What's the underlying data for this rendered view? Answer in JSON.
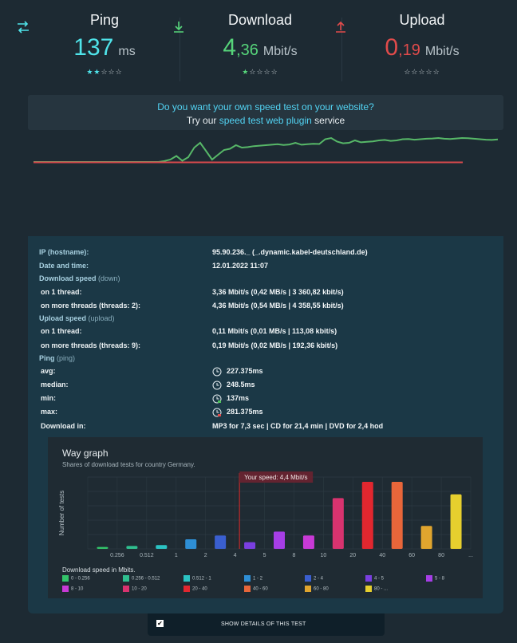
{
  "metrics": {
    "ping": {
      "title": "Ping",
      "value": "137",
      "unit": "ms",
      "stars_filled": 2,
      "stars_total": 5,
      "color": "#4fe3e9",
      "icon": "swap-arrows-icon"
    },
    "download": {
      "title": "Download",
      "value_int": "4",
      "value_dec": ",36",
      "unit": "Mbit/s",
      "stars_filled": 1,
      "stars_total": 5,
      "color": "#56d47a",
      "icon": "download-icon"
    },
    "upload": {
      "title": "Upload",
      "value_int": "0",
      "value_dec": ",19",
      "unit": "Mbit/s",
      "stars_filled": 0,
      "stars_total": 5,
      "color": "#e14b4b",
      "icon": "upload-icon"
    }
  },
  "promo": {
    "question": "Do you want your own speed test on your website?",
    "line2_prefix": "Try our ",
    "link": "speed test web plugin",
    "line2_suffix": " service"
  },
  "details": {
    "ip_label": "IP (hostname):",
    "ip_value": "95.90.236._ (_.dynamic.kabel-deutschland.de)",
    "date_label": "Date and time:",
    "date_value": "12.01.2022 11:07",
    "download_label": "Download speed",
    "download_sub": "(down)",
    "dl_one_label": "on 1 thread:",
    "dl_one_value": "3,36 Mbit/s (0,42 MB/s | 3 360,82 kbit/s)",
    "dl_more_label": "on more threads (threads: 2):",
    "dl_more_value": "4,36 Mbit/s (0,54 MB/s | 4 358,55 kbit/s)",
    "upload_label": "Upload speed",
    "upload_sub": "(upload)",
    "ul_one_label": "on 1 thread:",
    "ul_one_value": "0,11 Mbit/s (0,01 MB/s | 113,08 kbit/s)",
    "ul_more_label": "on more threads (threads: 9):",
    "ul_more_value": "0,19 Mbit/s (0,02 MB/s | 192,36 kbit/s)",
    "ping_label": "Ping",
    "ping_sub": "(ping)",
    "avg_label": "avg:",
    "avg_value": "227.375ms",
    "median_label": "median:",
    "median_value": "248.5ms",
    "min_label": "min:",
    "min_value": "137ms",
    "max_label": "max:",
    "max_value": "281.375ms",
    "dlin_label": "Download in:",
    "dlin_value": "MP3 for 7,3 sec | CD for 21,4 min | DVD for 2,4 hod"
  },
  "way_graph": {
    "title": "Way graph",
    "subtitle": "Shares of download tests for country Germany.",
    "marker_label": "Your speed: 4,4 Mbit/s",
    "legend_title": "Download speed in Mbits."
  },
  "chart_data": {
    "type": "bar",
    "title": "Way graph",
    "subtitle": "Shares of download tests for country Germany.",
    "ylabel": "Number of tests",
    "xlabel": "Download speed in Mbits.",
    "categories": [
      "0 - 0.256",
      "0.256 - 0.512",
      "0.512 - 1",
      "1 - 2",
      "2 - 4",
      "4 - 5",
      "5 - 8",
      "8 - 10",
      "10 - 20",
      "20 - 40",
      "40 - 60",
      "60 - 80",
      "80 - ..."
    ],
    "values": [
      2,
      3,
      4,
      10,
      14,
      7,
      18,
      14,
      53,
      70,
      70,
      24,
      57
    ],
    "colors": [
      "#33c46a",
      "#2fbf8f",
      "#2bc3c3",
      "#2e8fd6",
      "#3a5fd0",
      "#7a3fe0",
      "#a63ee6",
      "#c83ad6",
      "#d8336f",
      "#e1272f",
      "#e8663a",
      "#e0a52e",
      "#e6cf2e"
    ],
    "xticks": [
      "0.256",
      "0.512",
      "1",
      "2",
      "4",
      "5",
      "8",
      "10",
      "20",
      "40",
      "60",
      "80",
      "..."
    ],
    "ylim": [
      0,
      75
    ],
    "your_speed_label": "Your speed: 4,4 Mbit/s",
    "grid": true
  },
  "speed_history": {
    "download": [
      0,
      0,
      0,
      0,
      0,
      0,
      0,
      0,
      0,
      0,
      0,
      0,
      0,
      0,
      0,
      0,
      0,
      0,
      0,
      0,
      0,
      0,
      0.04,
      0.1,
      0.25,
      0.05,
      0.2,
      0.6,
      0.8,
      0.45,
      0.1,
      0.3,
      0.5,
      0.55,
      0.7,
      0.6,
      0.62,
      0.66,
      0.68,
      0.7,
      0.72,
      0.74,
      0.71,
      0.73,
      0.8,
      0.72,
      0.74,
      0.76,
      0.75,
      0.95,
      1.0,
      0.85,
      0.78,
      0.8,
      0.9,
      0.82,
      0.84,
      0.86,
      0.9,
      0.92,
      0.88,
      0.9,
      0.95,
      0.96,
      0.93,
      0.95,
      0.97,
      0.98,
      1.0,
      0.97,
      0.96,
      0.98,
      1.0,
      0.99,
      0.97,
      0.95,
      0.93,
      0.92,
      0.94
    ],
    "upload": [
      0.02,
      0.02,
      0.02,
      0.02,
      0.02,
      0.02,
      0.02,
      0.02,
      0.02,
      0.02,
      0.02,
      0.02,
      0.02,
      0.02,
      0.02,
      0.02,
      0.02,
      0.02,
      0.02,
      0.02,
      0.02,
      0.02,
      0.02,
      0.02,
      0.02,
      0.02,
      0.02,
      0.02,
      0.02,
      0.02,
      0.02,
      0.02,
      0.02,
      0.02,
      0.02,
      0.02,
      0.02,
      0.02,
      0.02,
      0.02
    ],
    "download_color": "#57b868",
    "upload_color": "#d8494d"
  },
  "footer": {
    "checkbox_mark": "✔",
    "label": "SHOW DETAILS OF THIS TEST"
  }
}
